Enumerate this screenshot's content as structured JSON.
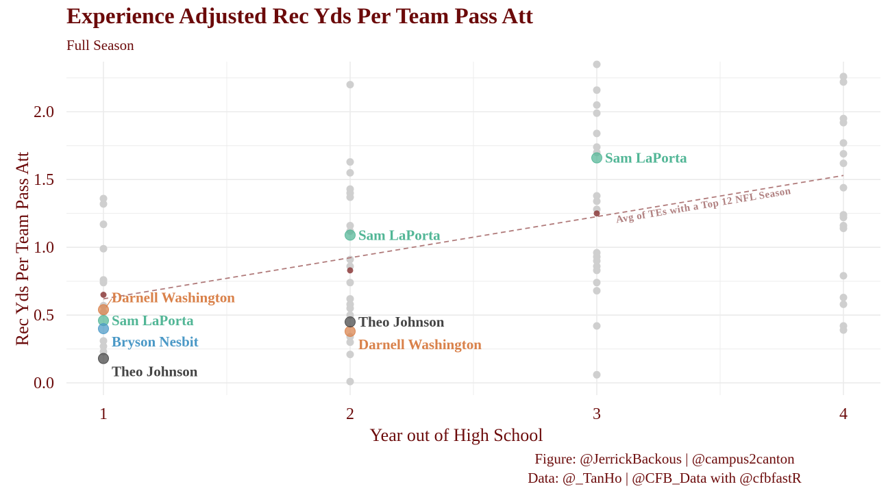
{
  "chart_data": {
    "type": "scatter",
    "title": "Experience Adjusted Rec Yds Per Team Pass Att",
    "subtitle": "Full Season",
    "xlabel": "Year out of High School",
    "ylabel": "Rec Yds Per Team Pass Att",
    "xlim": [
      0.85,
      4.15
    ],
    "ylim": [
      -0.09,
      2.37
    ],
    "x_ticks": [
      1,
      2,
      3,
      4
    ],
    "y_ticks": [
      0.0,
      0.5,
      1.0,
      1.5,
      2.0
    ],
    "y_tick_labels": [
      "0.0",
      "0.5",
      "1.0",
      "1.5",
      "2.0"
    ],
    "grid": true,
    "background_points": [
      {
        "x": 1,
        "y": 1.36
      },
      {
        "x": 1,
        "y": 1.32
      },
      {
        "x": 1,
        "y": 1.17
      },
      {
        "x": 1,
        "y": 0.99
      },
      {
        "x": 1,
        "y": 0.76
      },
      {
        "x": 1,
        "y": 0.74
      },
      {
        "x": 1,
        "y": 0.57
      },
      {
        "x": 1,
        "y": 0.52
      },
      {
        "x": 1,
        "y": 0.31
      },
      {
        "x": 1,
        "y": 0.27
      },
      {
        "x": 1,
        "y": 0.23
      },
      {
        "x": 2,
        "y": 2.2
      },
      {
        "x": 2,
        "y": 1.63
      },
      {
        "x": 2,
        "y": 1.55
      },
      {
        "x": 2,
        "y": 1.43
      },
      {
        "x": 2,
        "y": 1.4
      },
      {
        "x": 2,
        "y": 1.37
      },
      {
        "x": 2,
        "y": 1.16
      },
      {
        "x": 2,
        "y": 1.12
      },
      {
        "x": 2,
        "y": 0.91
      },
      {
        "x": 2,
        "y": 0.86
      },
      {
        "x": 2,
        "y": 0.74
      },
      {
        "x": 2,
        "y": 0.62
      },
      {
        "x": 2,
        "y": 0.58
      },
      {
        "x": 2,
        "y": 0.55
      },
      {
        "x": 2,
        "y": 0.5
      },
      {
        "x": 2,
        "y": 0.34
      },
      {
        "x": 2,
        "y": 0.3
      },
      {
        "x": 2,
        "y": 0.21
      },
      {
        "x": 2,
        "y": 0.01
      },
      {
        "x": 3,
        "y": 2.35
      },
      {
        "x": 3,
        "y": 2.16
      },
      {
        "x": 3,
        "y": 2.05
      },
      {
        "x": 3,
        "y": 1.99
      },
      {
        "x": 3,
        "y": 1.84
      },
      {
        "x": 3,
        "y": 1.74
      },
      {
        "x": 3,
        "y": 1.7
      },
      {
        "x": 3,
        "y": 1.38
      },
      {
        "x": 3,
        "y": 1.34
      },
      {
        "x": 3,
        "y": 1.28
      },
      {
        "x": 3,
        "y": 0.96
      },
      {
        "x": 3,
        "y": 0.93
      },
      {
        "x": 3,
        "y": 0.9
      },
      {
        "x": 3,
        "y": 0.86
      },
      {
        "x": 3,
        "y": 0.83
      },
      {
        "x": 3,
        "y": 0.74
      },
      {
        "x": 3,
        "y": 0.68
      },
      {
        "x": 3,
        "y": 0.42
      },
      {
        "x": 3,
        "y": 0.06
      },
      {
        "x": 4,
        "y": 2.26
      },
      {
        "x": 4,
        "y": 2.22
      },
      {
        "x": 4,
        "y": 1.95
      },
      {
        "x": 4,
        "y": 1.92
      },
      {
        "x": 4,
        "y": 1.77
      },
      {
        "x": 4,
        "y": 1.69
      },
      {
        "x": 4,
        "y": 1.62
      },
      {
        "x": 4,
        "y": 1.44
      },
      {
        "x": 4,
        "y": 1.24
      },
      {
        "x": 4,
        "y": 1.22
      },
      {
        "x": 4,
        "y": 1.16
      },
      {
        "x": 4,
        "y": 1.14
      },
      {
        "x": 4,
        "y": 0.79
      },
      {
        "x": 4,
        "y": 0.63
      },
      {
        "x": 4,
        "y": 0.58
      },
      {
        "x": 4,
        "y": 0.42
      },
      {
        "x": 4,
        "y": 0.39
      }
    ],
    "average_points": [
      {
        "x": 1,
        "y": 0.65
      },
      {
        "x": 2,
        "y": 0.83
      },
      {
        "x": 3,
        "y": 1.25
      }
    ],
    "trend_line": {
      "label": "Avg of TEs with a Top 12 NFL Season",
      "x1": 1,
      "y1": 0.62,
      "x2": 4,
      "y2": 1.53,
      "color": "#b07a7a"
    },
    "highlighted_players": [
      {
        "name": "Darnell Washington",
        "color": "#d9814a",
        "points": [
          {
            "x": 1,
            "y": 0.54
          },
          {
            "x": 2,
            "y": 0.38
          }
        ]
      },
      {
        "name": "Sam LaPorta",
        "color": "#52b696",
        "points": [
          {
            "x": 1,
            "y": 0.46
          },
          {
            "x": 2,
            "y": 1.09
          },
          {
            "x": 3,
            "y": 1.66
          }
        ]
      },
      {
        "name": "Bryson Nesbit",
        "color": "#4a98c6",
        "points": [
          {
            "x": 1,
            "y": 0.4
          }
        ]
      },
      {
        "name": "Theo Johnson",
        "color": "#444444",
        "points": [
          {
            "x": 1,
            "y": 0.18
          },
          {
            "x": 2,
            "y": 0.45
          }
        ]
      }
    ],
    "point_labels": [
      {
        "text": "Darnell Washington",
        "color": "#d9814a",
        "x": 1,
        "y": 0.54,
        "side": "above"
      },
      {
        "text": "Sam LaPorta",
        "color": "#52b696",
        "x": 1,
        "y": 0.46,
        "side": "right"
      },
      {
        "text": "Bryson Nesbit",
        "color": "#4a98c6",
        "x": 1,
        "y": 0.4,
        "side": "below"
      },
      {
        "text": "Theo Johnson",
        "color": "#444444",
        "x": 1,
        "y": 0.18,
        "side": "below"
      },
      {
        "text": "Sam LaPorta",
        "color": "#52b696",
        "x": 2,
        "y": 1.09,
        "side": "right"
      },
      {
        "text": "Theo Johnson",
        "color": "#444444",
        "x": 2,
        "y": 0.45,
        "side": "right"
      },
      {
        "text": "Darnell Washington",
        "color": "#d9814a",
        "x": 2,
        "y": 0.38,
        "side": "below"
      },
      {
        "text": "Sam LaPorta",
        "color": "#52b696",
        "x": 3,
        "y": 1.66,
        "side": "right"
      }
    ],
    "colors": {
      "text": "#6b0a0a",
      "background_point": "#cfcfcf",
      "average_point": "#8b3a3a",
      "grid": "#ebebeb"
    }
  },
  "caption": {
    "line1": "Figure: @JerrickBackous | @campus2canton",
    "line2": "Data: @_TanHo | @CFB_Data with @cfbfastR"
  }
}
